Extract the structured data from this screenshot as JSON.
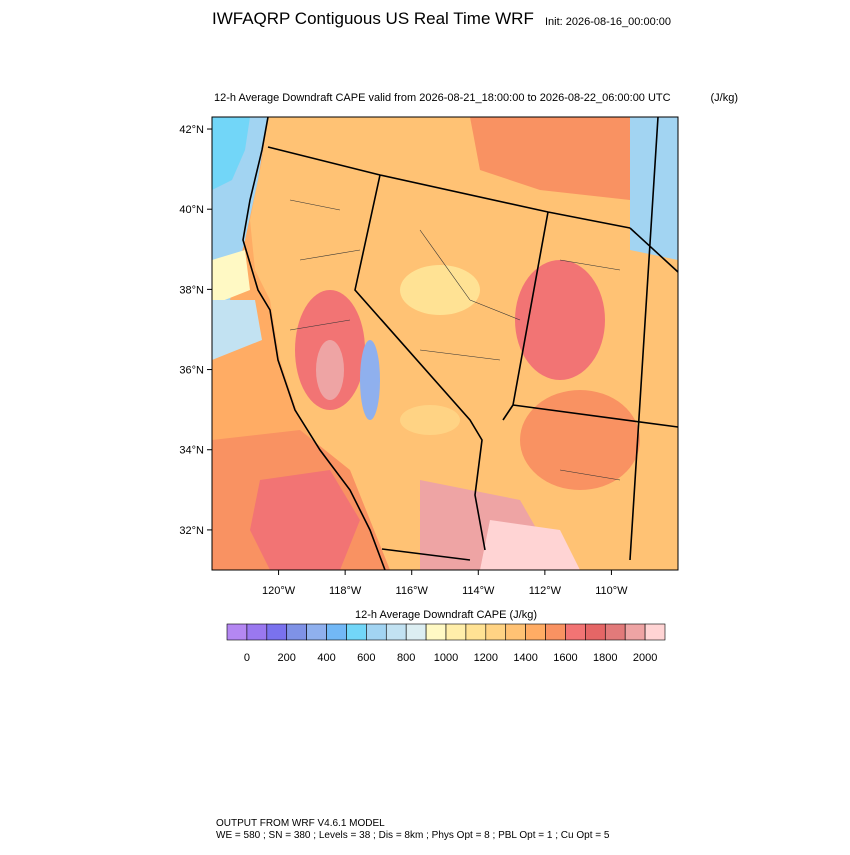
{
  "header": {
    "title": "IWFAQRP Contiguous US Real Time WRF",
    "init": "Init: 2026-08-16_00:00:00"
  },
  "map": {
    "title": "12-h Average Downdraft CAPE valid from 2026-08-21_18:00:00 to 2026-08-22_06:00:00 UTC",
    "units": "(J/kg)",
    "lat_range": [
      31,
      42.3
    ],
    "lon_range": [
      122,
      108
    ],
    "lat_ticks": [
      {
        "value": 42,
        "label": "42°N"
      },
      {
        "value": 40,
        "label": "40°N"
      },
      {
        "value": 38,
        "label": "38°N"
      },
      {
        "value": 36,
        "label": "36°N"
      },
      {
        "value": 34,
        "label": "34°N"
      },
      {
        "value": 32,
        "label": "32°N"
      }
    ],
    "lon_ticks": [
      {
        "value": 120,
        "label": "120°W"
      },
      {
        "value": 118,
        "label": "118°W"
      },
      {
        "value": 116,
        "label": "116°W"
      },
      {
        "value": 114,
        "label": "114°W"
      },
      {
        "value": 112,
        "label": "112°W"
      },
      {
        "value": 110,
        "label": "110°W"
      }
    ]
  },
  "colorbar": {
    "title": "12-h Average Downdraft CAPE  (J/kg)",
    "colors": [
      "#b487f2",
      "#9a78f0",
      "#7a72ee",
      "#7f92e6",
      "#8fb0ee",
      "#72b8f6",
      "#72d6f8",
      "#a2d4f2",
      "#c2e2f2",
      "#dceef2",
      "#fff9c4",
      "#ffeeaa",
      "#ffe294",
      "#ffd384",
      "#ffc274",
      "#ffac64",
      "#f99262",
      "#f27474",
      "#e56666",
      "#e27a7a",
      "#eea4a4",
      "#ffd4d4"
    ],
    "ticks": [
      0,
      200,
      400,
      600,
      800,
      1000,
      1200,
      1400,
      1600,
      1800,
      2000
    ]
  },
  "footer": {
    "line1": "OUTPUT FROM WRF V4.6.1 MODEL",
    "line2": "WE = 580 ; SN = 380 ; Levels = 38 ; Dis = 8km ; Phys Opt = 8 ; PBL Opt = 1 ; Cu Opt = 5"
  }
}
